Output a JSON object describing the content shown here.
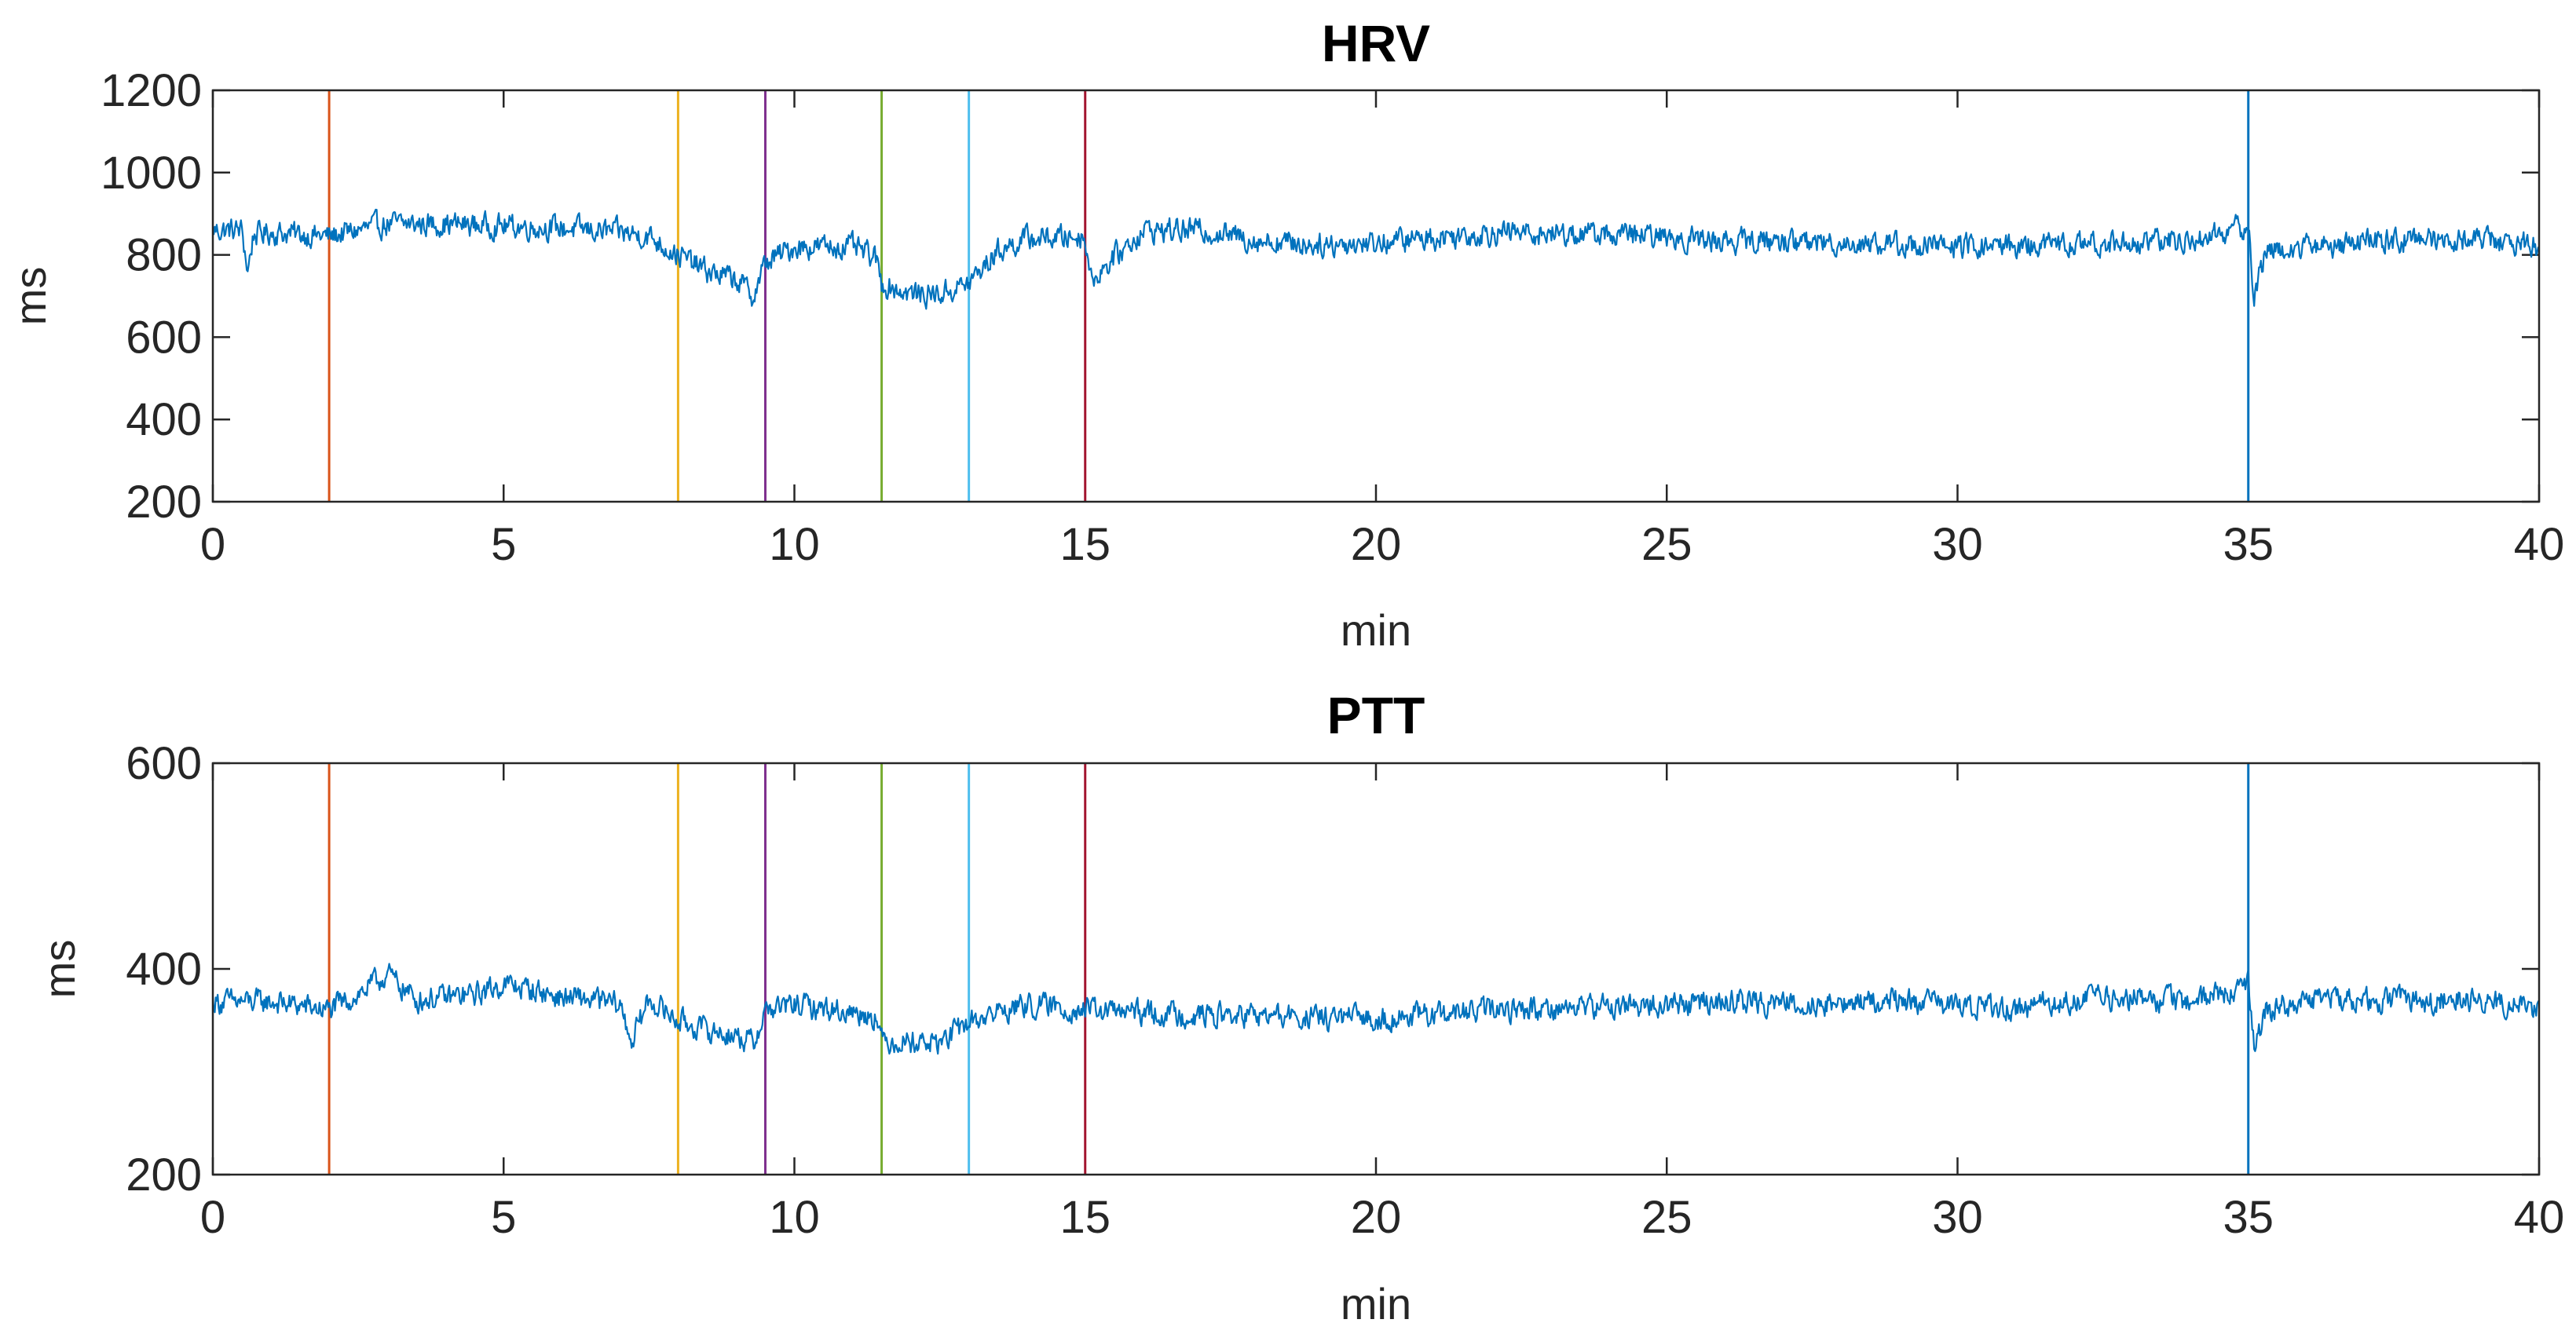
{
  "colors": {
    "signal": "#0072BD",
    "axis": "#262626",
    "background": "#FFFFFF"
  },
  "chart_data": [
    {
      "type": "line",
      "title": "HRV",
      "xlabel": "min",
      "ylabel": "ms",
      "xlim": [
        0,
        40
      ],
      "ylim": [
        200,
        1200
      ],
      "xticks": [
        0,
        5,
        10,
        15,
        20,
        25,
        30,
        35,
        40
      ],
      "yticks": [
        200,
        400,
        600,
        800,
        1000,
        1200
      ],
      "xtick_labels": [
        "0",
        "5",
        "10",
        "15",
        "20",
        "25",
        "30",
        "35",
        "40"
      ],
      "ytick_labels": [
        "200",
        "400",
        "600",
        "800",
        "1000",
        "1200"
      ],
      "series": [
        {
          "name": "HRV",
          "color": "#0072BD",
          "noise_amplitude": 25,
          "x": [
            0,
            0.5,
            0.6,
            0.7,
            1,
            2,
            3,
            4,
            5,
            6,
            7,
            7.5,
            8,
            8.5,
            9,
            9.3,
            9.5,
            10,
            11,
            11.4,
            11.5,
            12,
            12.5,
            13,
            13.5,
            14,
            15,
            15.1,
            16,
            17,
            18,
            19,
            20,
            22,
            24,
            26,
            28,
            30,
            32,
            34,
            35,
            35.1,
            35.3,
            36,
            37,
            38,
            39,
            40
          ],
          "values": [
            860,
            860,
            760,
            850,
            855,
            845,
            875,
            875,
            870,
            865,
            855,
            845,
            800,
            760,
            740,
            700,
            780,
            820,
            820,
            790,
            730,
            705,
            705,
            730,
            810,
            840,
            845,
            740,
            860,
            860,
            835,
            825,
            830,
            855,
            850,
            835,
            830,
            820,
            825,
            835,
            870,
            700,
            810,
            820,
            830,
            840,
            840,
            820
          ]
        }
      ],
      "vlines": [
        {
          "x": 2,
          "color": "#D95319"
        },
        {
          "x": 8,
          "color": "#EDB120"
        },
        {
          "x": 9.5,
          "color": "#7E2F8E"
        },
        {
          "x": 11.5,
          "color": "#77AC30"
        },
        {
          "x": 13,
          "color": "#4DBEEE"
        },
        {
          "x": 15,
          "color": "#A2142F"
        },
        {
          "x": 35,
          "color": "#0072BD"
        }
      ]
    },
    {
      "type": "line",
      "title": "PTT",
      "xlabel": "min",
      "ylabel": "ms",
      "xlim": [
        0,
        40
      ],
      "ylim": [
        200,
        600
      ],
      "xticks": [
        0,
        5,
        10,
        15,
        20,
        25,
        30,
        35,
        40
      ],
      "yticks": [
        200,
        400,
        600
      ],
      "xtick_labels": [
        "0",
        "5",
        "10",
        "15",
        "20",
        "25",
        "30",
        "35",
        "40"
      ],
      "ytick_labels": [
        "200",
        "400",
        "600"
      ],
      "series": [
        {
          "name": "PTT",
          "color": "#0072BD",
          "noise_amplitude": 10,
          "x": [
            0,
            1,
            2,
            2.5,
            3,
            3.5,
            4,
            4.5,
            5,
            5.5,
            6,
            6.5,
            7,
            7.2,
            7.5,
            8,
            8.5,
            9,
            9.3,
            9.5,
            10,
            11,
            11.4,
            11.5,
            12,
            12.5,
            13,
            13.5,
            14,
            15,
            16,
            17,
            18,
            19,
            20,
            21,
            22,
            23,
            24,
            25,
            26,
            27,
            28,
            29,
            30,
            31,
            32,
            33,
            34,
            35,
            35.1,
            35.3,
            36,
            37,
            38,
            39,
            40
          ],
          "values": [
            368,
            368,
            360,
            375,
            395,
            370,
            372,
            375,
            385,
            380,
            372,
            370,
            365,
            330,
            370,
            350,
            340,
            335,
            328,
            360,
            365,
            358,
            355,
            330,
            330,
            328,
            348,
            358,
            365,
            360,
            357,
            355,
            354,
            352,
            352,
            355,
            360,
            362,
            364,
            365,
            368,
            367,
            366,
            370,
            364,
            362,
            370,
            372,
            368,
            385,
            320,
            360,
            370,
            372,
            368,
            372,
            360
          ]
        }
      ],
      "vlines": [
        {
          "x": 2,
          "color": "#D95319"
        },
        {
          "x": 8,
          "color": "#EDB120"
        },
        {
          "x": 9.5,
          "color": "#7E2F8E"
        },
        {
          "x": 11.5,
          "color": "#77AC30"
        },
        {
          "x": 13,
          "color": "#4DBEEE"
        },
        {
          "x": 15,
          "color": "#A2142F"
        },
        {
          "x": 35,
          "color": "#0072BD"
        }
      ]
    }
  ]
}
